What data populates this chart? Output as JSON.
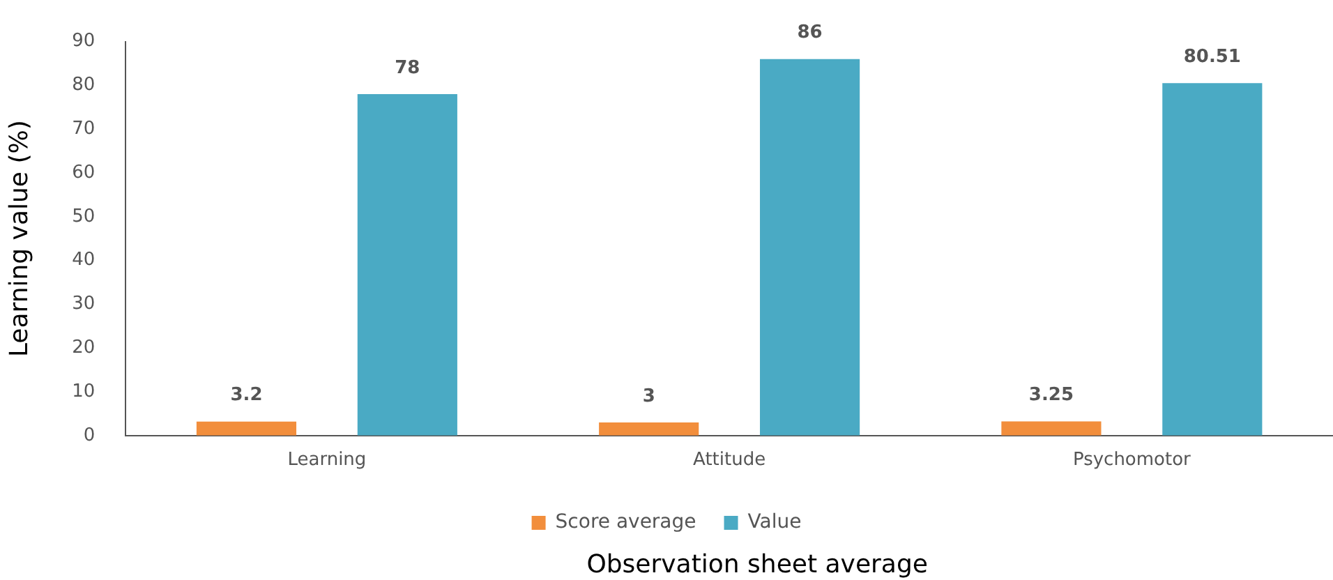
{
  "chart_data": {
    "type": "bar",
    "xlabel": "Observation sheet average",
    "ylabel": "Learning value (%)",
    "categories": [
      "Learning",
      "Attitude",
      "Psychomotor"
    ],
    "series": [
      {
        "name": "Score average",
        "color": "#f28e3c",
        "values": [
          3.2,
          3,
          3.25
        ]
      },
      {
        "name": "Value",
        "color": "#4aaac4",
        "values": [
          78,
          86,
          80.51
        ]
      }
    ],
    "ylim": [
      0,
      90
    ],
    "yticks": [
      0,
      10,
      20,
      30,
      40,
      50,
      60,
      70,
      80,
      90
    ],
    "grid": false,
    "legend": "bottom",
    "data_labels": true
  }
}
